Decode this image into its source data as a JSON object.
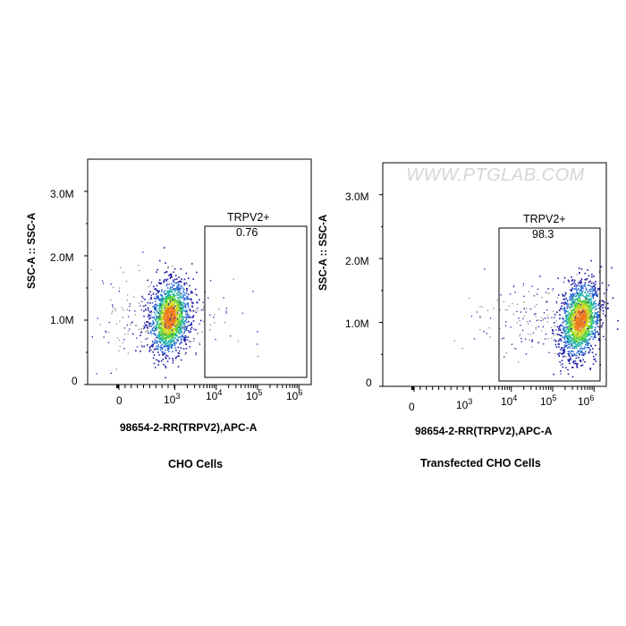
{
  "watermark": "WWW.PTGLAB.COM",
  "chart_data": [
    {
      "type": "scatter",
      "title": "CHO Cells",
      "xlabel": "98654-2-RR(TRPV2),APC-A",
      "ylabel": "SSC-A :: SSC-A",
      "x_scale": "biexponential",
      "x_tick_labels": [
        "0",
        "10^3",
        "10^4",
        "10^5",
        "10^6"
      ],
      "y_tick_labels": [
        "0",
        "1.0M",
        "2.0M",
        "3.0M"
      ],
      "ylim": [
        0,
        3500000
      ],
      "gate": {
        "name": "TRPV2+",
        "percent": "0.76",
        "x_range": [
          8000,
          1400000
        ],
        "y_range": [
          70000,
          2500000
        ]
      },
      "populations": [
        {
          "x_center": 900,
          "y_center": 1050000,
          "density": "high"
        }
      ],
      "colormap": [
        "#1a1aa6",
        "#2a6bd8",
        "#22b3a8",
        "#4fcf3a",
        "#c8d820",
        "#f07818",
        "#e03020"
      ]
    },
    {
      "type": "scatter",
      "title": "Transfected CHO Cells",
      "xlabel": "98654-2-RR(TRPV2),APC-A",
      "ylabel": "SSC-A :: SSC-A",
      "x_scale": "biexponential",
      "x_tick_labels": [
        "0",
        "10^3",
        "10^4",
        "10^5",
        "10^6"
      ],
      "y_tick_labels": [
        "0",
        "1.0M",
        "2.0M",
        "3.0M"
      ],
      "ylim": [
        0,
        3500000
      ],
      "gate": {
        "name": "TRPV2+",
        "percent": "98.3",
        "x_range": [
          8000,
          1400000
        ],
        "y_range": [
          70000,
          2500000
        ]
      },
      "populations": [
        {
          "x_center": 450000,
          "y_center": 1050000,
          "density": "high"
        }
      ],
      "colormap": [
        "#1a1aa6",
        "#2a6bd8",
        "#22b3a8",
        "#4fcf3a",
        "#c8d820",
        "#f07818",
        "#e03020"
      ]
    }
  ]
}
